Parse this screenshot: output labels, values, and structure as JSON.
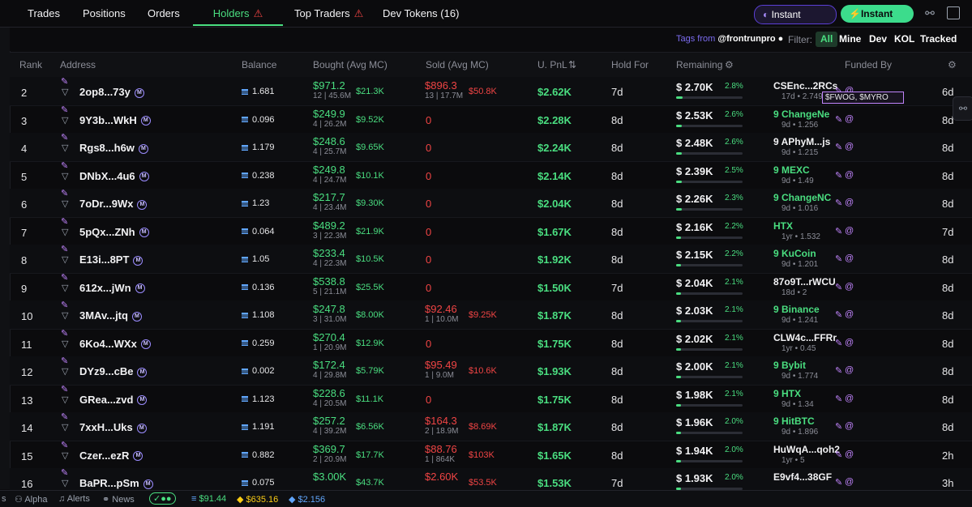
{
  "tabs": [
    {
      "label": "Trades",
      "warn": false
    },
    {
      "label": "Positions",
      "warn": false
    },
    {
      "label": "Orders",
      "warn": false
    },
    {
      "label": "Holders",
      "warn": true,
      "active": true
    },
    {
      "label": "Top Traders",
      "warn": true
    },
    {
      "label": "Dev Tokens (16)",
      "warn": false
    }
  ],
  "top_buttons": {
    "purple": "Instant Trade",
    "green": "Instant trade"
  },
  "filterbar": {
    "tags_from": "Tags from",
    "tags_handle": "@frontrunpro",
    "filter_label": "Filter:",
    "chips": [
      "All",
      "Mine",
      "Dev",
      "KOL",
      "Tracked"
    ],
    "selected": "All"
  },
  "columns": [
    "Rank",
    "Address",
    "Balance",
    "Bought (Avg MC)",
    "Sold (Avg MC)",
    "U. PnL",
    "Hold For",
    "Remaining",
    "Funded By"
  ],
  "tag_box": "$FWOG, $MYRO",
  "rows": [
    {
      "rank": "2",
      "addr": "2op8...73y",
      "bal": "1.681",
      "bv": "$971.2",
      "bs": "12 | 45.6M",
      "bmc": "$21.3K",
      "sv": "$896.3",
      "ss": "13 | 17.7M",
      "smc": "$50.8K",
      "pnl": "$2.62K",
      "hold": "7d",
      "rem": "$ 2.70K",
      "pct": "2.8%",
      "fund": "CSEnc...2RCs",
      "fmeta": "17d • 2.749",
      "fgreen": false,
      "last": "6d"
    },
    {
      "rank": "3",
      "addr": "9Y3b...WkH",
      "bal": "0.096",
      "bv": "$249.9",
      "bs": "4 | 26.2M",
      "bmc": "$9.52K",
      "sv": "0",
      "ss": "",
      "smc": "",
      "pnl": "$2.28K",
      "hold": "8d",
      "rem": "$ 2.53K",
      "pct": "2.6%",
      "fund": "9 ChangeNe",
      "fmeta": "9d • 1.256",
      "fgreen": true,
      "last": "8d"
    },
    {
      "rank": "4",
      "addr": "Rgs8...h6w",
      "bal": "1.179",
      "bv": "$248.6",
      "bs": "4 | 25.7M",
      "bmc": "$9.65K",
      "sv": "0",
      "ss": "",
      "smc": "",
      "pnl": "$2.24K",
      "hold": "8d",
      "rem": "$ 2.48K",
      "pct": "2.6%",
      "fund": "9 APhyM...js",
      "fmeta": "9d • 1.215",
      "fgreen": false,
      "last": "8d"
    },
    {
      "rank": "5",
      "addr": "DNbX...4u6",
      "bal": "0.238",
      "bv": "$249.8",
      "bs": "4 | 24.7M",
      "bmc": "$10.1K",
      "sv": "0",
      "ss": "",
      "smc": "",
      "pnl": "$2.14K",
      "hold": "8d",
      "rem": "$ 2.39K",
      "pct": "2.5%",
      "fund": "9 MEXC",
      "fmeta": "9d • 1.49",
      "fgreen": true,
      "last": "8d"
    },
    {
      "rank": "6",
      "addr": "7oDr...9Wx",
      "bal": "1.23",
      "bv": "$217.7",
      "bs": "4 | 23.4M",
      "bmc": "$9.30K",
      "sv": "0",
      "ss": "",
      "smc": "",
      "pnl": "$2.04K",
      "hold": "8d",
      "rem": "$ 2.26K",
      "pct": "2.3%",
      "fund": "9 ChangeNC",
      "fmeta": "9d • 1.016",
      "fgreen": true,
      "last": "8d"
    },
    {
      "rank": "7",
      "addr": "5pQx...ZNh",
      "bal": "0.064",
      "bv": "$489.2",
      "bs": "3 | 22.3M",
      "bmc": "$21.9K",
      "sv": "0",
      "ss": "",
      "smc": "",
      "pnl": "$1.67K",
      "hold": "8d",
      "rem": "$ 2.16K",
      "pct": "2.2%",
      "fund": "HTX",
      "fmeta": "1yr • 1.532",
      "fgreen": true,
      "last": "7d"
    },
    {
      "rank": "8",
      "addr": "E13i...8PT",
      "bal": "1.05",
      "bv": "$233.4",
      "bs": "4 | 22.3M",
      "bmc": "$10.5K",
      "sv": "0",
      "ss": "",
      "smc": "",
      "pnl": "$1.92K",
      "hold": "8d",
      "rem": "$ 2.15K",
      "pct": "2.2%",
      "fund": "9 KuCoin",
      "fmeta": "9d • 1.201",
      "fgreen": true,
      "last": "8d"
    },
    {
      "rank": "9",
      "addr": "612x...jWn",
      "bal": "0.136",
      "bv": "$538.8",
      "bs": "5 | 21.1M",
      "bmc": "$25.5K",
      "sv": "0",
      "ss": "",
      "smc": "",
      "pnl": "$1.50K",
      "hold": "7d",
      "rem": "$ 2.04K",
      "pct": "2.1%",
      "fund": "87o9T...rWCU",
      "fmeta": "18d • 2",
      "fgreen": false,
      "last": "8d"
    },
    {
      "rank": "10",
      "addr": "3MAv...jtq",
      "bal": "1.108",
      "bv": "$247.8",
      "bs": "3 | 31.0M",
      "bmc": "$8.00K",
      "sv": "$92.46",
      "ss": "1 | 10.0M",
      "smc": "$9.25K",
      "pnl": "$1.87K",
      "hold": "8d",
      "rem": "$ 2.03K",
      "pct": "2.1%",
      "fund": "9 Binance",
      "fmeta": "9d • 1.241",
      "fgreen": true,
      "last": "8d"
    },
    {
      "rank": "11",
      "addr": "6Ko4...WXx",
      "bal": "0.259",
      "bv": "$270.4",
      "bs": "1 | 20.9M",
      "bmc": "$12.9K",
      "sv": "0",
      "ss": "",
      "smc": "",
      "pnl": "$1.75K",
      "hold": "8d",
      "rem": "$ 2.02K",
      "pct": "2.1%",
      "fund": "CLW4c...FFRr",
      "fmeta": "1yr • 0.45",
      "fgreen": false,
      "last": "8d"
    },
    {
      "rank": "12",
      "addr": "DYz9...cBe",
      "bal": "0.002",
      "bv": "$172.4",
      "bs": "4 | 29.8M",
      "bmc": "$5.79K",
      "sv": "$95.49",
      "ss": "1 | 9.0M",
      "smc": "$10.6K",
      "pnl": "$1.93K",
      "hold": "8d",
      "rem": "$ 2.00K",
      "pct": "2.1%",
      "fund": "9 Bybit",
      "fmeta": "9d • 1.774",
      "fgreen": true,
      "last": "8d"
    },
    {
      "rank": "13",
      "addr": "GRea...zvd",
      "bal": "1.123",
      "bv": "$228.6",
      "bs": "4 | 20.5M",
      "bmc": "$11.1K",
      "sv": "0",
      "ss": "",
      "smc": "",
      "pnl": "$1.75K",
      "hold": "8d",
      "rem": "$ 1.98K",
      "pct": "2.1%",
      "fund": "9 HTX",
      "fmeta": "9d • 1.34",
      "fgreen": true,
      "last": "8d"
    },
    {
      "rank": "14",
      "addr": "7xxH...Uks",
      "bal": "1.191",
      "bv": "$257.2",
      "bs": "4 | 39.2M",
      "bmc": "$6.56K",
      "sv": "$164.3",
      "ss": "2 | 18.9M",
      "smc": "$8.69K",
      "pnl": "$1.87K",
      "hold": "8d",
      "rem": "$ 1.96K",
      "pct": "2.0%",
      "fund": "9 HitBTC",
      "fmeta": "9d • 1.896",
      "fgreen": true,
      "last": "8d"
    },
    {
      "rank": "15",
      "addr": "Czer...ezR",
      "bal": "0.882",
      "bv": "$369.7",
      "bs": "2 | 20.9M",
      "bmc": "$17.7K",
      "sv": "$88.76",
      "ss": "1 | 864K",
      "smc": "$103K",
      "pnl": "$1.65K",
      "hold": "8d",
      "rem": "$ 1.94K",
      "pct": "2.0%",
      "fund": "HuWqA...qoh2",
      "fmeta": "1yr • 5",
      "fgreen": false,
      "last": "2h"
    },
    {
      "rank": "16",
      "addr": "BaPR...pSm",
      "bal": "0.075",
      "bv": "$3.00K",
      "bs": "",
      "bmc": "$43.7K",
      "sv": "$2.60K",
      "ss": "",
      "smc": "$53.5K",
      "pnl": "$1.53K",
      "hold": "7d",
      "rem": "$ 1.93K",
      "pct": "2.0%",
      "fund": "E9vf4...38GF",
      "fmeta": "",
      "fgreen": false,
      "last": "3h"
    }
  ],
  "footer": {
    "alpha": "Alpha",
    "alerts": "Alerts",
    "news": "News",
    "sol": "$91.44",
    "bnb": "$635.16",
    "eth": "$2.156"
  }
}
